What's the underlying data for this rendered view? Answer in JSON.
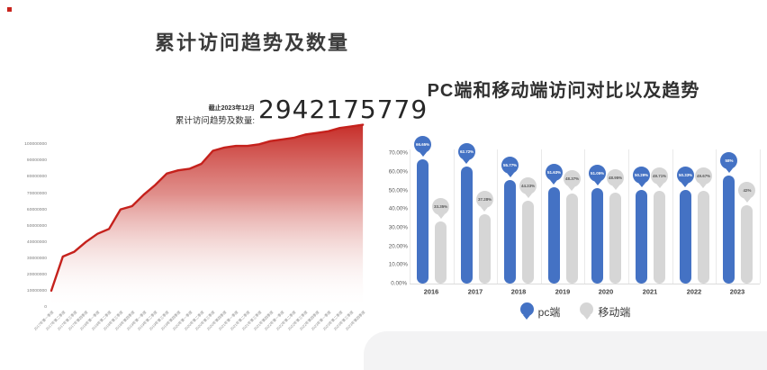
{
  "page": {
    "background": "#ffffff",
    "corner_marker_color": "#c9241d"
  },
  "chart_data": [
    {
      "type": "area",
      "title": "累计访问趋势及数量",
      "subtitle_asof": "截止2023年12月",
      "total_label": "累计访问趋势及数量:",
      "total_value": "2942175779",
      "x": [
        "2017年第一季度",
        "2017年第二季度",
        "2017年第三季度",
        "2017年第四季度",
        "2018年第一季度",
        "2018年第二季度",
        "2018年第三季度",
        "2018年第四季度",
        "2019年第一季度",
        "2019年第二季度",
        "2019年第三季度",
        "2019年第四季度",
        "2020年第一季度",
        "2020年第二季度",
        "2020年第三季度",
        "2020年第四季度",
        "2021年第一季度",
        "2021年第二季度",
        "2021年第三季度",
        "2021年第四季度",
        "2022年第一季度",
        "2022年第二季度",
        "2022年第三季度",
        "2022年第四季度",
        "2023年第一季度",
        "2023年第二季度",
        "2023年第三季度",
        "2023年第四季度"
      ],
      "series": [
        {
          "name": "累计访问量",
          "color": "#c5211c",
          "values": [
            10000000,
            31000000,
            34000000,
            40000000,
            45000000,
            48000000,
            60000000,
            62000000,
            69000000,
            75000000,
            82000000,
            84000000,
            85000000,
            88000000,
            96000000,
            98000000,
            99000000,
            99000000,
            100000000,
            102000000,
            103000000,
            104000000,
            106000000,
            107000000,
            108000000,
            110000000,
            111000000,
            112000000
          ]
        }
      ],
      "y_ticks": [
        "100000000",
        "90000000",
        "80000000",
        "70000000",
        "60000000",
        "50000000",
        "40000000",
        "30000000",
        "20000000",
        "10000000",
        "0"
      ],
      "ylim": [
        0,
        113000000
      ],
      "grid": false,
      "legend_position": "none"
    },
    {
      "type": "bar",
      "style": "lollipop",
      "title": "PC端和移动端访问对比以及趋势",
      "categories": [
        "2016",
        "2017",
        "2018",
        "2019",
        "2020",
        "2021",
        "2022",
        "2023"
      ],
      "series": [
        {
          "name": "pc端",
          "color": "#4472c4",
          "label_text_color": "#ffffff",
          "values": [
            66.65,
            62.72,
            55.77,
            51.63,
            51.05,
            50.29,
            50.33,
            58
          ],
          "labels": [
            "66.65%",
            "62.72%",
            "55.77%",
            "51.63%",
            "51.05%",
            "50.29%",
            "50.33%",
            "58%"
          ]
        },
        {
          "name": "移动端",
          "color": "#d6d6d6",
          "label_text_color": "#595959",
          "values": [
            33.35,
            37.28,
            44.23,
            48.37,
            48.95,
            49.71,
            49.67,
            42
          ],
          "labels": [
            "33.35%",
            "37.28%",
            "44.23%",
            "48.37%",
            "48.95%",
            "49.71%",
            "49.67%",
            "42%"
          ]
        }
      ],
      "y_ticks": [
        "70.00%",
        "60.00%",
        "50.00%",
        "40.00%",
        "30.00%",
        "20.00%",
        "10.00%",
        "0.00%"
      ],
      "ylim": [
        0,
        70
      ],
      "grid": false,
      "legend_position": "bottom"
    }
  ]
}
